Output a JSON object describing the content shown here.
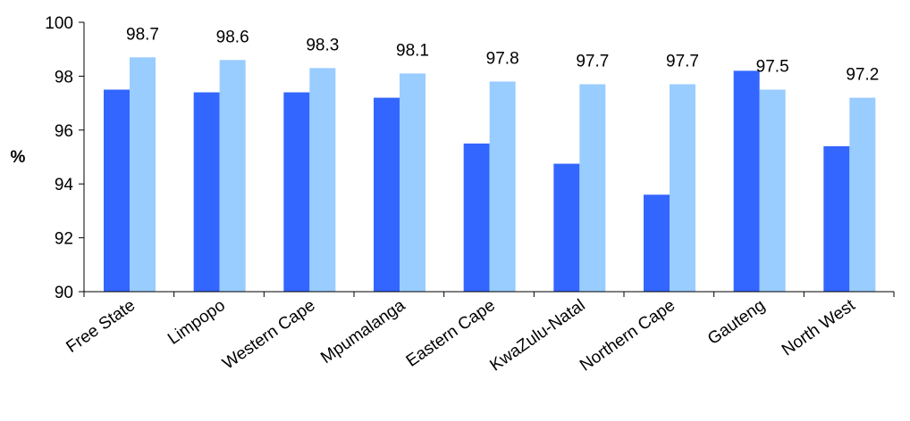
{
  "chart_data": {
    "type": "bar",
    "categories": [
      "Free State",
      "Limpopo",
      "Western Cape",
      "Mpumalanga",
      "Eastern Cape",
      "KwaZulu-Natal",
      "Northern Cape",
      "Gauteng",
      "North West"
    ],
    "series": [
      {
        "values": [
          97.5,
          97.4,
          97.4,
          97.2,
          95.5,
          94.75,
          93.6,
          98.2,
          95.4
        ],
        "color": "#3366ff"
      },
      {
        "values": [
          98.7,
          98.6,
          98.3,
          98.1,
          97.8,
          97.7,
          97.7,
          97.5,
          97.2
        ],
        "color": "#99ccff"
      }
    ],
    "data_labels": [
      "98.7",
      "98.6",
      "98.3",
      "98.1",
      "97.8",
      "97.7",
      "97.7",
      "97.5",
      "97.2"
    ],
    "ylabel": "%",
    "xlabel": "",
    "ylim": [
      90,
      100
    ],
    "yticks": [
      90,
      92,
      94,
      96,
      98,
      100
    ],
    "grid": false,
    "legend": "none"
  }
}
